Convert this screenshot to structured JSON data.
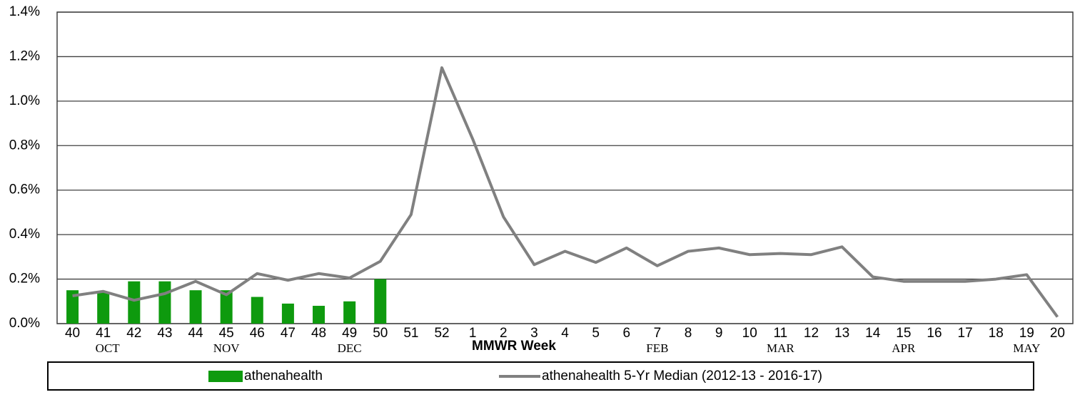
{
  "chart_data": {
    "type": "bar",
    "x_label": "MMWR Week",
    "categories": [
      "40",
      "41",
      "42",
      "43",
      "44",
      "45",
      "46",
      "47",
      "48",
      "49",
      "50",
      "51",
      "52",
      "1",
      "2",
      "3",
      "4",
      "5",
      "6",
      "7",
      "8",
      "9",
      "10",
      "11",
      "12",
      "13",
      "14",
      "15",
      "16",
      "17",
      "18",
      "19",
      "20"
    ],
    "month_labels": [
      null,
      "OCT",
      null,
      null,
      null,
      "NOV",
      null,
      null,
      null,
      "DEC",
      null,
      null,
      null,
      null,
      null,
      null,
      null,
      null,
      null,
      "FEB",
      null,
      null,
      null,
      "MAR",
      null,
      null,
      null,
      "APR",
      null,
      null,
      null,
      "MAY",
      null
    ],
    "series": [
      {
        "name": "athenahealth",
        "type": "bar",
        "color": "#0e9a0e",
        "values": [
          0.15,
          0.14,
          0.19,
          0.19,
          0.15,
          0.15,
          0.12,
          0.09,
          0.08,
          0.1,
          0.2,
          null,
          null,
          null,
          null,
          null,
          null,
          null,
          null,
          null,
          null,
          null,
          null,
          null,
          null,
          null,
          null,
          null,
          null,
          null,
          null,
          null,
          null
        ]
      },
      {
        "name": "athenahealth 5-Yr Median (2012-13 - 2016-17)",
        "type": "line",
        "color": "#808080",
        "values": [
          0.125,
          0.145,
          0.105,
          0.135,
          0.19,
          0.13,
          0.225,
          0.195,
          0.225,
          0.205,
          0.28,
          0.49,
          1.15,
          0.83,
          0.48,
          0.265,
          0.325,
          0.275,
          0.34,
          0.26,
          0.325,
          0.34,
          0.31,
          0.315,
          0.31,
          0.345,
          0.21,
          0.19,
          0.19,
          0.19,
          0.2,
          0.22,
          0.03
        ]
      }
    ],
    "ylim": [
      0,
      1.4
    ],
    "yticks": [
      {
        "value": 0,
        "label": "0.0%"
      },
      {
        "value": 0.2,
        "label": "0.2%"
      },
      {
        "value": 0.4,
        "label": "0.4%"
      },
      {
        "value": 0.6,
        "label": "0.6%"
      },
      {
        "value": 0.8,
        "label": "0.8%"
      },
      {
        "value": 1.0,
        "label": "1.0%"
      },
      {
        "value": 1.2,
        "label": "1.2%"
      },
      {
        "value": 1.4,
        "label": "1.4%"
      }
    ],
    "grid": true,
    "legend": "bottom"
  }
}
